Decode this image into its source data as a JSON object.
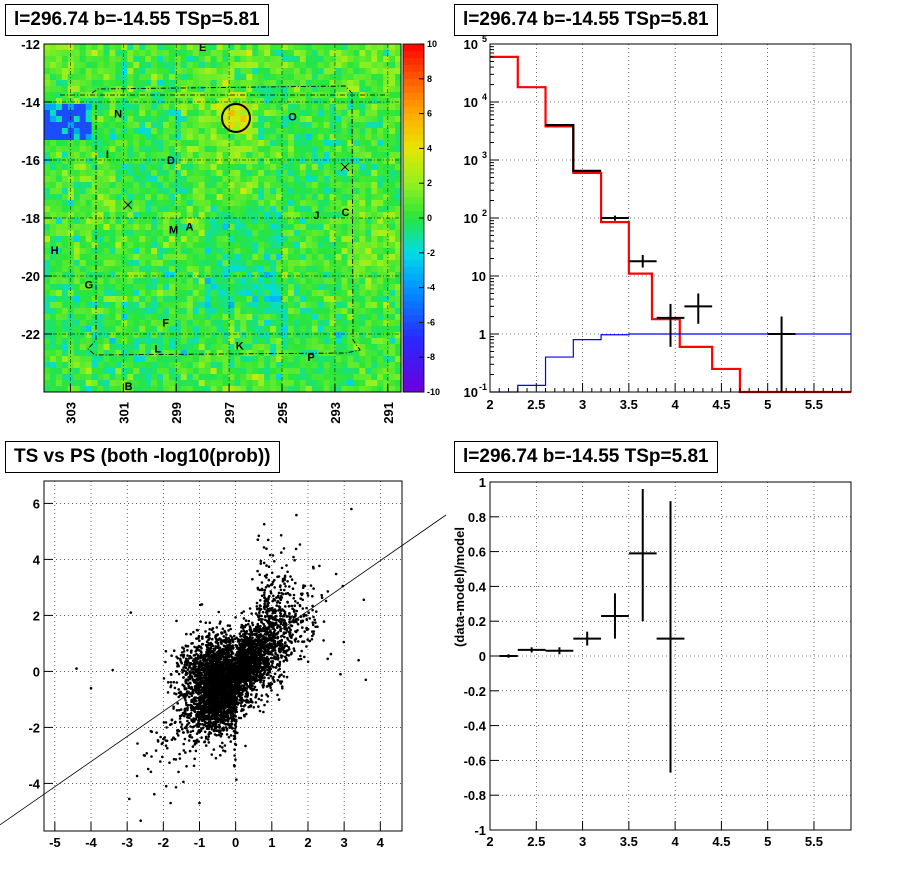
{
  "panels": {
    "skymap": {
      "title": "l=296.74 b=-14.55 TSp=5.81"
    },
    "spectrum": {
      "title": "l=296.74 b=-14.55 TSp=5.81"
    },
    "scatter": {
      "title": "TS vs PS (both -log10(prob))"
    },
    "residual": {
      "title": "l=296.74 b=-14.55 TSp=5.81"
    }
  },
  "chart_data": [
    {
      "type": "heatmap",
      "title": "l=296.74 b=-14.55 TSp=5.81",
      "xlim": [
        304,
        290.5
      ],
      "ylim": [
        -24,
        -12
      ],
      "xticks": [
        "303",
        "301",
        "299",
        "297",
        "295",
        "293",
        "291"
      ],
      "yticks": [
        "-12",
        "-14",
        "-16",
        "-18",
        "-20",
        "-22"
      ],
      "colorbar": {
        "range": [
          -10,
          10
        ],
        "ticks": [
          "10",
          "8",
          "6",
          "4",
          "2",
          "0",
          "-2",
          "-4",
          "-6",
          "-8",
          "-10"
        ]
      },
      "source_labels": [
        {
          "text": "E",
          "l": 298.0,
          "b": -12.1
        },
        {
          "text": "N",
          "l": 301.2,
          "b": -14.4
        },
        {
          "text": "O",
          "l": 294.6,
          "b": -14.5
        },
        {
          "text": "I",
          "l": 301.6,
          "b": -15.8
        },
        {
          "text": "D",
          "l": 299.2,
          "b": -16.0
        },
        {
          "text": "J",
          "l": 293.7,
          "b": -17.9
        },
        {
          "text": "C",
          "l": 292.6,
          "b": -17.8
        },
        {
          "text": "M",
          "l": 299.1,
          "b": -18.4
        },
        {
          "text": "A",
          "l": 298.5,
          "b": -18.3
        },
        {
          "text": "H",
          "l": 303.6,
          "b": -19.1
        },
        {
          "text": "G",
          "l": 302.3,
          "b": -20.3
        },
        {
          "text": "F",
          "l": 299.4,
          "b": -21.6
        },
        {
          "text": "L",
          "l": 299.7,
          "b": -22.5
        },
        {
          "text": "K",
          "l": 296.6,
          "b": -22.4
        },
        {
          "text": "P",
          "l": 293.9,
          "b": -22.8
        },
        {
          "text": "B",
          "l": 300.8,
          "b": -23.8
        }
      ],
      "circle": {
        "l": 296.74,
        "b": -14.55
      }
    },
    {
      "type": "line",
      "title": "l=296.74 b=-14.55 TSp=5.81",
      "xlim": [
        2,
        5.9
      ],
      "ylim": [
        0.1,
        100000
      ],
      "yscale": "log",
      "xticks": [
        "2",
        "2.5",
        "3",
        "3.5",
        "4",
        "4.5",
        "5",
        "5.5"
      ],
      "yticks": [
        "10^-1",
        "1",
        "10",
        "10^2",
        "10^3",
        "10^4",
        "10^5"
      ],
      "series": [
        {
          "color": "#ff0000",
          "steps": [
            [
              2.0,
              2.3,
              60000
            ],
            [
              2.3,
              2.6,
              18000
            ],
            [
              2.6,
              2.9,
              3800
            ],
            [
              2.9,
              3.2,
              600
            ],
            [
              3.2,
              3.5,
              85
            ],
            [
              3.5,
              3.75,
              11
            ],
            [
              3.75,
              4.05,
              1.8
            ],
            [
              4.05,
              4.4,
              0.6
            ],
            [
              4.4,
              4.7,
              0.25
            ],
            [
              4.7,
              5.9,
              0.1
            ]
          ]
        },
        {
          "color": "#000000",
          "steps": [
            [
              2.6,
              2.9,
              4000
            ],
            [
              2.9,
              3.2,
              650
            ]
          ]
        },
        {
          "color": "#0000ff",
          "steps": [
            [
              2.0,
              2.3,
              0.1
            ],
            [
              2.3,
              2.6,
              0.13
            ],
            [
              2.6,
              2.9,
              0.4
            ],
            [
              2.9,
              3.2,
              0.8
            ],
            [
              3.2,
              3.5,
              0.97
            ],
            [
              3.5,
              5.9,
              1.0
            ]
          ]
        }
      ],
      "points": [
        {
          "x": 3.35,
          "y": 100,
          "xerr": 0.15,
          "ylo": 90,
          "yhi": 110
        },
        {
          "x": 3.65,
          "y": 18,
          "xerr": 0.15,
          "ylo": 14,
          "yhi": 23
        },
        {
          "x": 3.95,
          "y": 1.9,
          "xerr": 0.15,
          "ylo": 0.6,
          "yhi": 3.3
        },
        {
          "x": 4.25,
          "y": 3,
          "xerr": 0.15,
          "ylo": 1.5,
          "yhi": 5.0
        },
        {
          "x": 5.15,
          "y": 1.0,
          "xerr": 0.15,
          "ylo": 0.1,
          "yhi": 2.0
        }
      ]
    },
    {
      "type": "scatter",
      "title": "TS vs PS (both -log10(prob))",
      "xlim": [
        -5.3,
        4.6
      ],
      "ylim": [
        -5.7,
        6.8
      ],
      "xticks": [
        "-5",
        "-4",
        "-3",
        "-2",
        "-1",
        "0",
        "1",
        "2",
        "3",
        "4"
      ],
      "yticks": [
        "-4",
        "-2",
        "0",
        "2",
        "4",
        "6"
      ],
      "diagonal": {
        "x1": -5.3,
        "y1": -5.1,
        "x2": 5.6,
        "y2": 5.7
      }
    },
    {
      "type": "scatter",
      "title": "l=296.74 b=-14.55 TSp=5.81",
      "ylabel": "(data-model)/model",
      "xlim": [
        2,
        5.9
      ],
      "ylim": [
        -1,
        1
      ],
      "xticks": [
        "2",
        "2.5",
        "3",
        "3.5",
        "4",
        "4.5",
        "5",
        "5.5"
      ],
      "yticks": [
        "1",
        "0.8",
        "0.6",
        "0.4",
        "0.2",
        "0",
        "-0.2",
        "-0.4",
        "-0.6",
        "-0.8",
        "-1"
      ],
      "points": [
        {
          "x": 2.2,
          "y": 0.0,
          "xerr": 0.1,
          "ylo": -0.01,
          "yhi": 0.01
        },
        {
          "x": 2.45,
          "y": 0.035,
          "xerr": 0.15,
          "ylo": 0.02,
          "yhi": 0.05
        },
        {
          "x": 2.75,
          "y": 0.03,
          "xerr": 0.15,
          "ylo": 0.01,
          "yhi": 0.05
        },
        {
          "x": 3.05,
          "y": 0.1,
          "xerr": 0.15,
          "ylo": 0.06,
          "yhi": 0.14
        },
        {
          "x": 3.35,
          "y": 0.23,
          "xerr": 0.15,
          "ylo": 0.1,
          "yhi": 0.36
        },
        {
          "x": 3.65,
          "y": 0.59,
          "xerr": 0.15,
          "ylo": 0.2,
          "yhi": 0.96
        },
        {
          "x": 3.95,
          "y": 0.1,
          "xerr": 0.15,
          "ylo": -0.67,
          "yhi": 0.89
        }
      ]
    }
  ]
}
